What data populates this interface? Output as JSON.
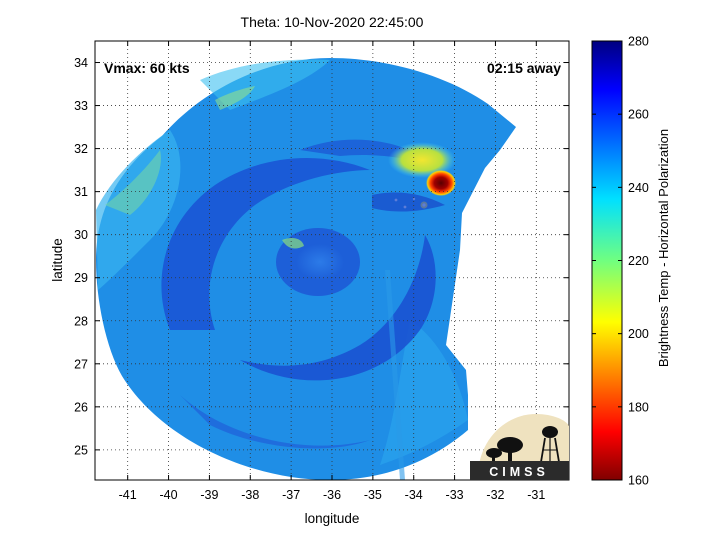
{
  "title": "Theta: 10-Nov-2020 22:45:00",
  "annotations": {
    "vmax": "Vmax: 60 kts",
    "time_away": "02:15 away"
  },
  "axes": {
    "xlabel": "longitude",
    "ylabel": "latitude",
    "xlim": [
      -41.8,
      -30.2
    ],
    "ylim": [
      24.3,
      34.5
    ],
    "xticks": [
      "-41",
      "-40",
      "-39",
      "-38",
      "-37",
      "-36",
      "-35",
      "-34",
      "-33",
      "-32",
      "-31"
    ],
    "yticks": [
      "25",
      "26",
      "27",
      "28",
      "29",
      "30",
      "31",
      "32",
      "33",
      "34"
    ],
    "grid": "dotted"
  },
  "colorbar": {
    "label": "Brightness Temp - Horizontal Polarization",
    "min": 160,
    "max": 280,
    "ticks": [
      "160",
      "180",
      "200",
      "220",
      "240",
      "260",
      "280"
    ],
    "colormap": "jet"
  },
  "storm": {
    "center_lon": -35.9,
    "center_lat": 29.5,
    "cold_cloud_lon": -33.3,
    "cold_cloud_lat": 31.1
  },
  "logo": {
    "text": "CIMSS"
  },
  "colors": {
    "background_field": "#1f8fe6",
    "dark_band": "#1a4fd0",
    "warm_accent": "#8b0000",
    "cold_yellow": "#f5e23a"
  }
}
